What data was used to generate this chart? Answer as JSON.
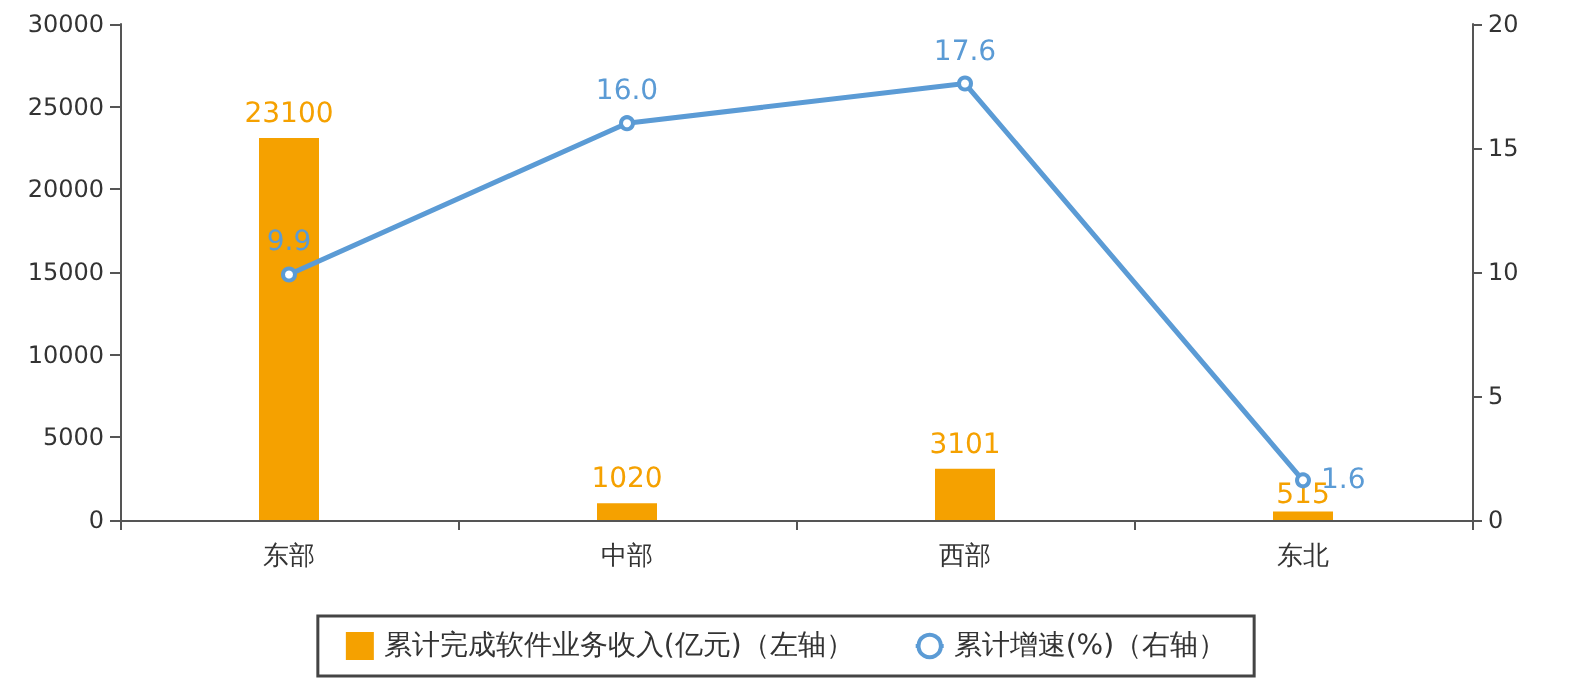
{
  "chart_data": {
    "type": "bar",
    "categories": [
      "东部",
      "中部",
      "西部",
      "东北"
    ],
    "series": [
      {
        "name": "累计完成软件业务收入(亿元)（左轴）",
        "color": "#f5a100",
        "values": [
          23100,
          1020,
          3101,
          515
        ]
      },
      {
        "name": "累计增速(%)（右轴）",
        "type": "line",
        "axis": "y2",
        "color": "#5b9bd5",
        "values": [
          9.9,
          16.0,
          17.6,
          1.6
        ],
        "value_labels": [
          "9.9",
          "16.0",
          "17.6",
          "1.6"
        ]
      }
    ],
    "ylim": [
      0,
      30000
    ],
    "yticks": [
      0,
      5000,
      10000,
      15000,
      20000,
      25000,
      30000
    ],
    "y2lim": [
      0,
      20
    ],
    "y2ticks": [
      0,
      5,
      10,
      15,
      20
    ],
    "data_labels": true,
    "grid": false,
    "legend": "bottom",
    "marker": "circle",
    "line_style": "solid"
  }
}
